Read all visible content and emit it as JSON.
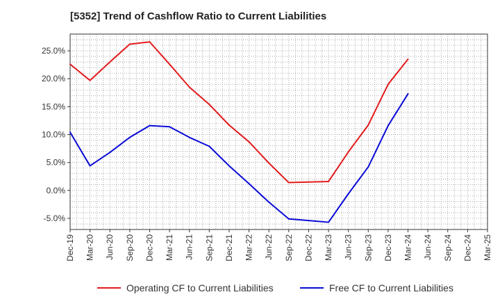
{
  "chart_data": {
    "type": "line",
    "title": "[5352]  Trend of Cashflow Ratio to Current Liabilities",
    "xlabel": "",
    "ylabel": "",
    "categories": [
      "Dec-19",
      "Mar-20",
      "Jun-20",
      "Sep-20",
      "Dec-20",
      "Mar-21",
      "Jun-21",
      "Sep-21",
      "Dec-21",
      "Mar-22",
      "Jun-22",
      "Sep-22",
      "Dec-22",
      "Mar-23",
      "Jun-23",
      "Sep-23",
      "Dec-23",
      "Mar-24",
      "Jun-24",
      "Sep-24",
      "Dec-24",
      "Mar-25"
    ],
    "yticks": [
      "25.0%",
      "20.0%",
      "15.0%",
      "10.0%",
      "5.0%",
      "0.0%",
      "-5.0%"
    ],
    "ylim": [
      -7,
      28
    ],
    "grid": true,
    "legend_position": "bottom",
    "series": [
      {
        "name": "Operating CF to Current Liabilities",
        "color": "#e31a1c",
        "values": [
          22.6,
          19.7,
          23.0,
          26.2,
          26.6,
          22.6,
          18.5,
          15.4,
          11.7,
          8.7,
          4.9,
          1.4,
          1.5,
          1.6,
          6.9,
          11.7,
          19.0,
          23.5,
          null,
          null,
          null,
          null
        ]
      },
      {
        "name": "Free CF to Current Liabilities",
        "color": "#0a0ad8",
        "values": [
          10.4,
          4.4,
          6.8,
          9.5,
          11.6,
          11.4,
          9.5,
          7.9,
          4.4,
          1.2,
          -2.1,
          -5.1,
          -5.4,
          -5.7,
          -0.6,
          4.2,
          11.6,
          17.3,
          null,
          null,
          null,
          null
        ]
      }
    ]
  }
}
